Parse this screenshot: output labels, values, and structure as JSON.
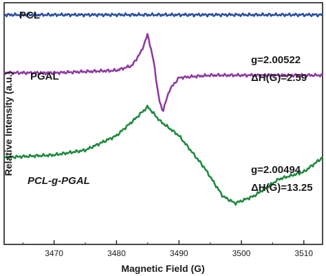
{
  "chart_data": {
    "type": "line",
    "xlabel": "Magnetic Field (G)",
    "ylabel": "Relative Intensity (a.u.)",
    "xlim": [
      3462,
      3513
    ],
    "ylim": [
      0,
      100
    ],
    "x_ticks": [
      "3470",
      "3480",
      "3490",
      "3500",
      "3510"
    ],
    "y_ticks_shown": false,
    "legend": "none",
    "series": [
      {
        "name": "PCL",
        "color": "#2d4fa1",
        "x": [
          3462,
          3470,
          3480,
          3490,
          3500,
          3513
        ],
        "y": [
          95,
          95,
          95,
          95,
          95,
          95
        ]
      },
      {
        "name": "PGAL",
        "color": "#8e3ba0",
        "x": [
          3462,
          3470,
          3480,
          3482.5,
          3484,
          3485,
          3486,
          3486.8,
          3487.4,
          3488.5,
          3490,
          3495,
          3500,
          3513
        ],
        "y": [
          71,
          71,
          72,
          74,
          80,
          87,
          75,
          60,
          55,
          64,
          69,
          70,
          70,
          70
        ],
        "annotation": [
          "g=2.00522",
          "ΔH(G)=2.59"
        ]
      },
      {
        "name": "PCL-g-PGAL",
        "color": "#1f8a3e",
        "x": [
          3462,
          3470,
          3475,
          3480,
          3483,
          3485,
          3487,
          3490,
          3494,
          3497,
          3499,
          3502,
          3506,
          3510,
          3513
        ],
        "y": [
          36,
          37,
          39,
          45,
          52,
          57,
          51,
          45,
          32,
          20,
          17,
          20,
          27,
          30,
          36
        ],
        "annotation": [
          "g=2.00494",
          "ΔH(G)=13.25"
        ]
      }
    ]
  }
}
